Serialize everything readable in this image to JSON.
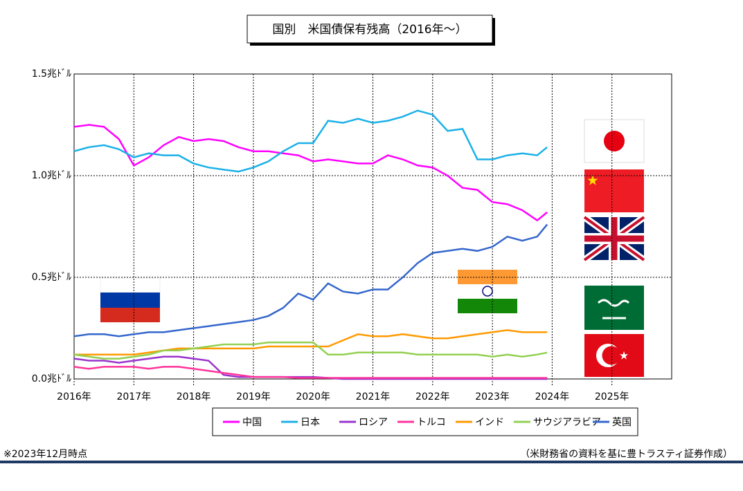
{
  "chart_data": {
    "type": "line",
    "title": "国別　米国債保有残高（2016年～）",
    "footnote": "※2023年12月時点",
    "source": "（米財務省の資料を基に豊トラスティ証券作成）",
    "x": [
      2016,
      2016.25,
      2016.5,
      2016.75,
      2017,
      2017.25,
      2017.5,
      2017.75,
      2018,
      2018.25,
      2018.5,
      2018.75,
      2019,
      2019.25,
      2019.5,
      2019.75,
      2020,
      2020.25,
      2020.5,
      2020.75,
      2021,
      2021.25,
      2021.5,
      2021.75,
      2022,
      2022.25,
      2022.5,
      2022.75,
      2023,
      2023.25,
      2023.5,
      2023.75,
      2023.917
    ],
    "series": [
      {
        "name": "中国",
        "color": "#ff00ff",
        "values": [
          1.24,
          1.25,
          1.24,
          1.18,
          1.05,
          1.09,
          1.15,
          1.19,
          1.17,
          1.18,
          1.17,
          1.14,
          1.12,
          1.12,
          1.11,
          1.1,
          1.07,
          1.08,
          1.07,
          1.06,
          1.06,
          1.1,
          1.08,
          1.05,
          1.04,
          1.0,
          0.94,
          0.93,
          0.87,
          0.86,
          0.83,
          0.78,
          0.82
        ]
      },
      {
        "name": "日本",
        "color": "#1ab0e8",
        "values": [
          1.12,
          1.14,
          1.15,
          1.13,
          1.09,
          1.11,
          1.1,
          1.1,
          1.06,
          1.04,
          1.03,
          1.02,
          1.04,
          1.07,
          1.12,
          1.16,
          1.16,
          1.27,
          1.26,
          1.28,
          1.26,
          1.27,
          1.29,
          1.32,
          1.3,
          1.22,
          1.23,
          1.08,
          1.08,
          1.1,
          1.11,
          1.1,
          1.14
        ]
      },
      {
        "name": "ロシア",
        "color": "#9933cc",
        "values": [
          0.1,
          0.09,
          0.09,
          0.08,
          0.09,
          0.1,
          0.11,
          0.11,
          0.1,
          0.09,
          0.02,
          0.01,
          0.01,
          0.01,
          0.01,
          0.01,
          0.01,
          0.005,
          0,
          0,
          0,
          0,
          0,
          0,
          0,
          0,
          0,
          0,
          0,
          0,
          0,
          0,
          0
        ]
      },
      {
        "name": "トルコ",
        "color": "#ff3399",
        "values": [
          0.06,
          0.05,
          0.06,
          0.06,
          0.06,
          0.05,
          0.06,
          0.06,
          0.05,
          0.04,
          0.03,
          0.02,
          0.01,
          0.01,
          0.01,
          0.005,
          0.005,
          0.005,
          0.005,
          0.005,
          0.005,
          0.005,
          0.005,
          0.005,
          0.005,
          0.005,
          0.005,
          0.005,
          0.005,
          0.005,
          0.005,
          0.005,
          0.005
        ]
      },
      {
        "name": "インド",
        "color": "#ff9900",
        "values": [
          0.12,
          0.12,
          0.12,
          0.12,
          0.12,
          0.13,
          0.14,
          0.15,
          0.15,
          0.15,
          0.15,
          0.15,
          0.15,
          0.16,
          0.16,
          0.16,
          0.16,
          0.16,
          0.19,
          0.22,
          0.21,
          0.21,
          0.22,
          0.21,
          0.2,
          0.2,
          0.21,
          0.22,
          0.23,
          0.24,
          0.23,
          0.23,
          0.23
        ]
      },
      {
        "name": "サウジアラビア",
        "color": "#92d050",
        "values": [
          0.12,
          0.11,
          0.1,
          0.1,
          0.11,
          0.12,
          0.14,
          0.14,
          0.15,
          0.16,
          0.17,
          0.17,
          0.17,
          0.18,
          0.18,
          0.18,
          0.18,
          0.12,
          0.12,
          0.13,
          0.13,
          0.13,
          0.13,
          0.12,
          0.12,
          0.12,
          0.12,
          0.12,
          0.11,
          0.12,
          0.11,
          0.12,
          0.13
        ]
      },
      {
        "name": "英国",
        "color": "#3366cc",
        "values": [
          0.21,
          0.22,
          0.22,
          0.21,
          0.22,
          0.23,
          0.23,
          0.24,
          0.25,
          0.26,
          0.27,
          0.28,
          0.29,
          0.31,
          0.35,
          0.42,
          0.39,
          0.47,
          0.43,
          0.42,
          0.44,
          0.44,
          0.5,
          0.57,
          0.62,
          0.63,
          0.64,
          0.63,
          0.65,
          0.7,
          0.68,
          0.7,
          0.76
        ]
      }
    ],
    "xlim": [
      2016,
      2026
    ],
    "xticks": [
      {
        "value": 2016,
        "label": "2016年"
      },
      {
        "value": 2017,
        "label": "2017年"
      },
      {
        "value": 2018,
        "label": "2018年"
      },
      {
        "value": 2019,
        "label": "2019年"
      },
      {
        "value": 2020,
        "label": "2020年"
      },
      {
        "value": 2021,
        "label": "2021年"
      },
      {
        "value": 2022,
        "label": "2022年"
      },
      {
        "value": 2023,
        "label": "2023年"
      },
      {
        "value": 2024,
        "label": "2024年"
      },
      {
        "value": 2025,
        "label": "2025年"
      }
    ],
    "ylim": [
      0,
      1.5
    ],
    "yticks": [
      {
        "value": 0,
        "label": "0.0兆ﾄﾞﾙ"
      },
      {
        "value": 0.5,
        "label": "0.5兆ﾄﾞﾙ"
      },
      {
        "value": 1.0,
        "label": "1.0兆ﾄﾞﾙ"
      },
      {
        "value": 1.5,
        "label": "1.5兆ﾄﾞﾙ"
      }
    ],
    "grid": true
  }
}
